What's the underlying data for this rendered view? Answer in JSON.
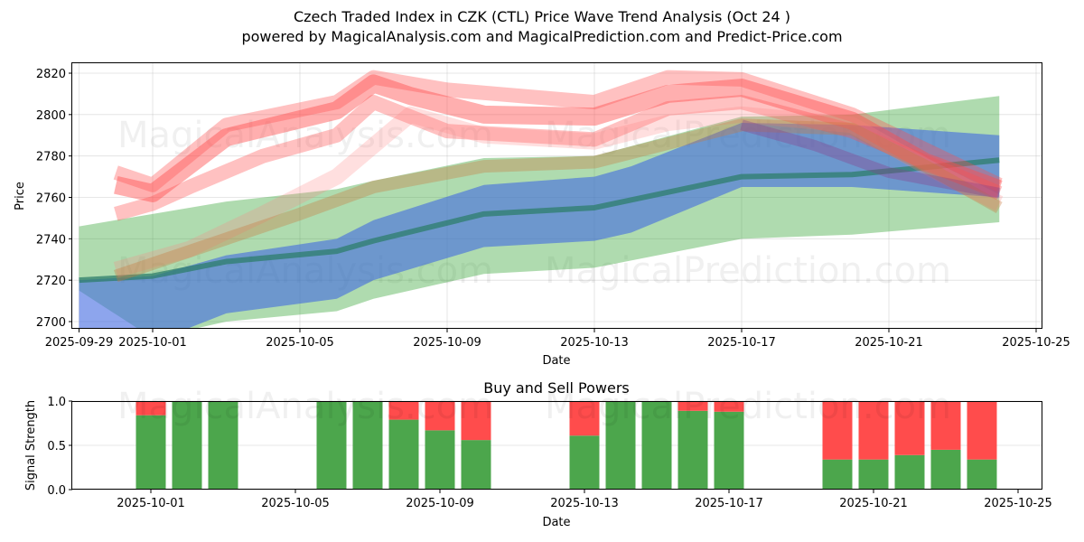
{
  "header": {
    "title": "Czech Traded Index in CZK (CTL) Price Wave Trend Analysis (Oct 24 )",
    "subtitle": "powered by MagicalAnalysis.com and MagicalPrediction.com and Predict-Price.com"
  },
  "watermarks": [
    "MagicalAnalysis.com",
    "MagicalPrediction.com"
  ],
  "colors": {
    "green_band": "#2ca02c",
    "blue_band": "#4169e1",
    "center_line": "#2e7d6b",
    "red_wave": "#ff4d4d",
    "buy": "#4ca64c",
    "sell": "#ff4c4c"
  },
  "chart_data": [
    {
      "type": "area",
      "title": "",
      "xlabel": "Date",
      "ylabel": "Price",
      "ylim": [
        2697,
        2825
      ],
      "xlim": [
        "2025-09-28",
        "2025-10-25"
      ],
      "yticks": [
        2700,
        2720,
        2740,
        2760,
        2780,
        2800,
        2820
      ],
      "xticks": [
        "2025-09-29",
        "2025-10-01",
        "2025-10-05",
        "2025-10-09",
        "2025-10-13",
        "2025-10-17",
        "2025-10-21",
        "2025-10-25"
      ],
      "grid": true,
      "series": [
        {
          "name": "green-band",
          "kind": "band",
          "x": [
            "2025-09-29",
            "2025-10-01",
            "2025-10-03",
            "2025-10-06",
            "2025-10-07",
            "2025-10-10",
            "2025-10-13",
            "2025-10-17",
            "2025-10-20",
            "2025-10-24"
          ],
          "upper": [
            2746,
            2752,
            2758,
            2764,
            2768,
            2779,
            2780,
            2799,
            2800,
            2809
          ],
          "lower": [
            2715,
            2692,
            2700,
            2705,
            2711,
            2723,
            2726,
            2740,
            2742,
            2748
          ]
        },
        {
          "name": "blue-band",
          "kind": "band",
          "x": [
            "2025-09-29",
            "2025-10-01",
            "2025-10-03",
            "2025-10-06",
            "2025-10-07",
            "2025-10-10",
            "2025-10-13",
            "2025-10-14",
            "2025-10-17",
            "2025-10-20",
            "2025-10-24"
          ],
          "upper": [
            2720,
            2722,
            2732,
            2740,
            2749,
            2766,
            2770,
            2775,
            2796,
            2795,
            2790
          ],
          "lower": [
            2694,
            2690,
            2704,
            2711,
            2720,
            2736,
            2739,
            2743,
            2765,
            2765,
            2760
          ]
        },
        {
          "name": "center-line",
          "kind": "line",
          "x": [
            "2025-09-29",
            "2025-10-01",
            "2025-10-03",
            "2025-10-06",
            "2025-10-07",
            "2025-10-10",
            "2025-10-13",
            "2025-10-17",
            "2025-10-20",
            "2025-10-24"
          ],
          "values": [
            2720,
            2722,
            2729,
            2734,
            2739,
            2752,
            2755,
            2770,
            2771,
            2778
          ]
        },
        {
          "name": "red-wave-main",
          "kind": "wave",
          "x": [
            "2025-09-30",
            "2025-10-01",
            "2025-10-03",
            "2025-10-06",
            "2025-10-07",
            "2025-10-08",
            "2025-10-10",
            "2025-10-13",
            "2025-10-15",
            "2025-10-17",
            "2025-10-20",
            "2025-10-22",
            "2025-10-24"
          ],
          "values": [
            2766,
            2762,
            2789,
            2802,
            2815,
            2809,
            2800,
            2799,
            2810,
            2813,
            2797,
            2777,
            2764
          ]
        },
        {
          "name": "red-wave-upper",
          "kind": "wave",
          "x": [
            "2025-09-30",
            "2025-10-01",
            "2025-10-03",
            "2025-10-06",
            "2025-10-07",
            "2025-10-09",
            "2025-10-13",
            "2025-10-15",
            "2025-10-17",
            "2025-10-20",
            "2025-10-24"
          ],
          "values": [
            2772,
            2766,
            2795,
            2806,
            2818,
            2812,
            2806,
            2818,
            2817,
            2800,
            2766
          ]
        },
        {
          "name": "red-wave-lower",
          "kind": "wave",
          "x": [
            "2025-09-30",
            "2025-10-01",
            "2025-10-02",
            "2025-10-04",
            "2025-10-06",
            "2025-10-07",
            "2025-10-09",
            "2025-10-13",
            "2025-10-15",
            "2025-10-17",
            "2025-10-20",
            "2025-10-24"
          ],
          "values": [
            2752,
            2757,
            2765,
            2780,
            2790,
            2806,
            2792,
            2788,
            2803,
            2806,
            2792,
            2762
          ]
        },
        {
          "name": "red-wave-faint-rise",
          "kind": "wave",
          "x": [
            "2025-09-30",
            "2025-10-02",
            "2025-10-04",
            "2025-10-06",
            "2025-10-08",
            "2025-10-10",
            "2025-10-13",
            "2025-10-15",
            "2025-10-17",
            "2025-10-20",
            "2025-10-22",
            "2025-10-24"
          ],
          "values": [
            2725,
            2735,
            2752,
            2770,
            2800,
            2790,
            2787,
            2796,
            2800,
            2795,
            2775,
            2757
          ]
        },
        {
          "name": "orange-wave",
          "kind": "wave",
          "x": [
            "2025-09-30",
            "2025-10-01",
            "2025-10-03",
            "2025-10-05",
            "2025-10-07",
            "2025-10-10",
            "2025-10-13",
            "2025-10-17",
            "2025-10-20",
            "2025-10-22",
            "2025-10-24"
          ],
          "values": [
            2722,
            2728,
            2740,
            2752,
            2765,
            2775,
            2777,
            2795,
            2793,
            2775,
            2755
          ]
        },
        {
          "name": "purple-wave",
          "kind": "wave",
          "x": [
            "2025-10-17",
            "2025-10-19",
            "2025-10-21",
            "2025-10-24"
          ],
          "values": [
            2795,
            2785,
            2772,
            2762
          ]
        }
      ]
    },
    {
      "type": "bar",
      "title": "Buy and Sell Powers",
      "xlabel": "Date",
      "ylabel": "Signal Strength",
      "ylim": [
        0,
        1
      ],
      "yticks": [
        "0.0",
        "0.5",
        "1.0"
      ],
      "xticks": [
        "2025-10-01",
        "2025-10-05",
        "2025-10-09",
        "2025-10-13",
        "2025-10-17",
        "2025-10-21",
        "2025-10-25"
      ],
      "xlim": [
        "2025-09-28",
        "2025-10-25"
      ],
      "grid": true,
      "categories": [
        "2025-10-01",
        "2025-10-02",
        "2025-10-03",
        "2025-10-06",
        "2025-10-07",
        "2025-10-08",
        "2025-10-09",
        "2025-10-10",
        "2025-10-13",
        "2025-10-14",
        "2025-10-15",
        "2025-10-16",
        "2025-10-17",
        "2025-10-20",
        "2025-10-21",
        "2025-10-22",
        "2025-10-23",
        "2025-10-24"
      ],
      "series": [
        {
          "name": "Buy",
          "values": [
            0.84,
            1.0,
            1.0,
            1.0,
            1.0,
            0.79,
            0.67,
            0.56,
            0.61,
            1.0,
            1.0,
            0.89,
            0.88,
            0.34,
            0.34,
            0.39,
            0.45,
            0.34
          ]
        },
        {
          "name": "Sell",
          "values": [
            0.16,
            0.0,
            0.0,
            0.0,
            0.0,
            0.21,
            0.33,
            0.44,
            0.39,
            0.0,
            0.0,
            0.11,
            0.12,
            0.66,
            0.66,
            0.61,
            0.55,
            0.66
          ]
        }
      ]
    }
  ]
}
